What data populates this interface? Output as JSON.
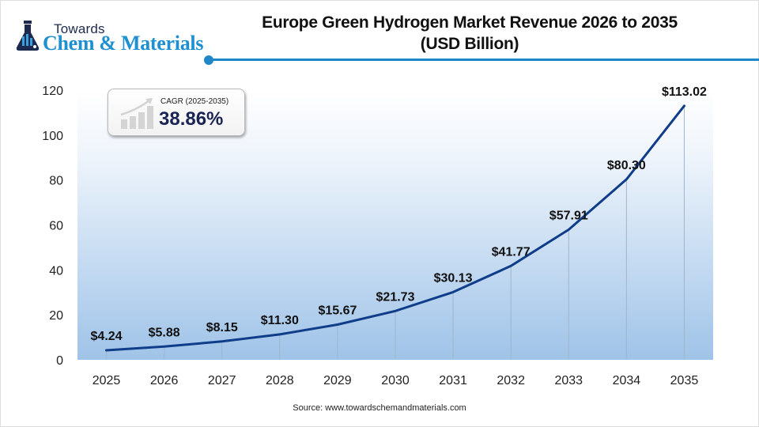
{
  "logo": {
    "top_text": "Towards",
    "main_text": "Chem & Materials",
    "icon": "flask-icon"
  },
  "header": {
    "title_line1": "Europe Green Hydrogen Market Revenue 2026 to 2035",
    "title_line2": "(USD Billion)"
  },
  "cagr": {
    "label": "CAGR (2025-2035)",
    "value": "38.86%",
    "icon": "growth-chart-icon"
  },
  "source": "Source: www.towardschemandmaterials.com",
  "colors": {
    "line": "#0f3d8a",
    "accent": "#1f87c9",
    "gradient_bottom": "#9fc3e8",
    "gradient_top": "#ffffff",
    "cagr_value": "#1a2454"
  },
  "chart_data": {
    "type": "line",
    "title": "Europe Green Hydrogen Market Revenue 2026 to 2035 (USD Billion)",
    "xlabel": "",
    "ylabel": "",
    "categories": [
      "2025",
      "2026",
      "2027",
      "2028",
      "2029",
      "2030",
      "2031",
      "2032",
      "2033",
      "2034",
      "2035"
    ],
    "series": [
      {
        "name": "Revenue (USD Billion)",
        "values": [
          4.24,
          5.88,
          8.15,
          11.3,
          15.67,
          21.73,
          30.13,
          41.77,
          57.91,
          80.3,
          113.02
        ],
        "labels": [
          "$4.24",
          "$5.88",
          "$8.15",
          "$11.30",
          "$15.67",
          "$21.73",
          "$30.13",
          "$41.77",
          "$57.91",
          "$80.30",
          "$113.02"
        ]
      }
    ],
    "ylim": [
      0,
      120
    ],
    "yticks": [
      0,
      20,
      40,
      60,
      80,
      100,
      120
    ],
    "grid": "vertical",
    "legend": "none"
  }
}
